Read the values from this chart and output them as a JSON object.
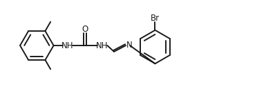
{
  "bg_color": "#ffffff",
  "bond_color": "#1a1a1a",
  "bond_lw": 1.4,
  "text_color": "#1a1a1a",
  "font_size": 8.5,
  "fig_width": 3.98,
  "fig_height": 1.32,
  "dpi": 100,
  "xlim": [
    0.0,
    9.8
  ],
  "ylim": [
    0.5,
    3.5
  ]
}
